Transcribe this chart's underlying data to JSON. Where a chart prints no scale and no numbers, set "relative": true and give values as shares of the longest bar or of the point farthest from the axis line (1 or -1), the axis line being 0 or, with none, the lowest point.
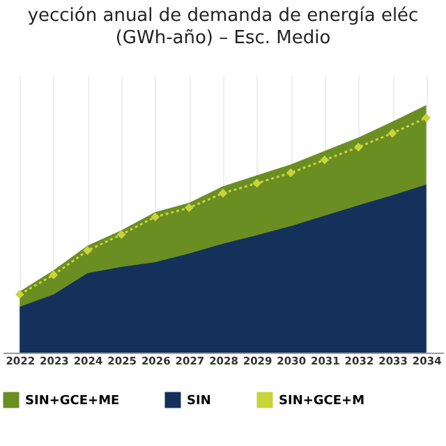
{
  "chart_data": {
    "type": "area",
    "title": "yección anual de demanda de energía eléc",
    "subtitle": "(GWh-año) – Esc. Medio",
    "categories": [
      "2022",
      "2023",
      "2024",
      "2025",
      "2026",
      "2027",
      "2028",
      "2029",
      "2030",
      "2031",
      "2032",
      "2033",
      "2034"
    ],
    "relative": true,
    "grid": "x",
    "legend": "bottom",
    "series": [
      {
        "name": "SIN+GCE+ME",
        "type": "area",
        "color": "#6b8e23",
        "values": [
          0.247,
          0.333,
          0.432,
          0.494,
          0.568,
          0.605,
          0.672,
          0.716,
          0.76,
          0.815,
          0.869,
          0.933,
          1
        ]
      },
      {
        "name": "SIN",
        "type": "area",
        "color": "#14315c",
        "values": [
          0.185,
          0.235,
          0.321,
          0.346,
          0.365,
          0.4,
          0.44,
          0.474,
          0.511,
          0.553,
          0.595,
          0.635,
          0.679
        ]
      },
      {
        "name": "SIN+GCE+M",
        "type": "line",
        "color": "#c8d43a",
        "marker": "diamond",
        "line_style": "dotted",
        "values": [
          0.235,
          0.314,
          0.412,
          0.477,
          0.548,
          0.585,
          0.644,
          0.684,
          0.726,
          0.778,
          0.83,
          0.886,
          0.948
        ]
      }
    ]
  }
}
